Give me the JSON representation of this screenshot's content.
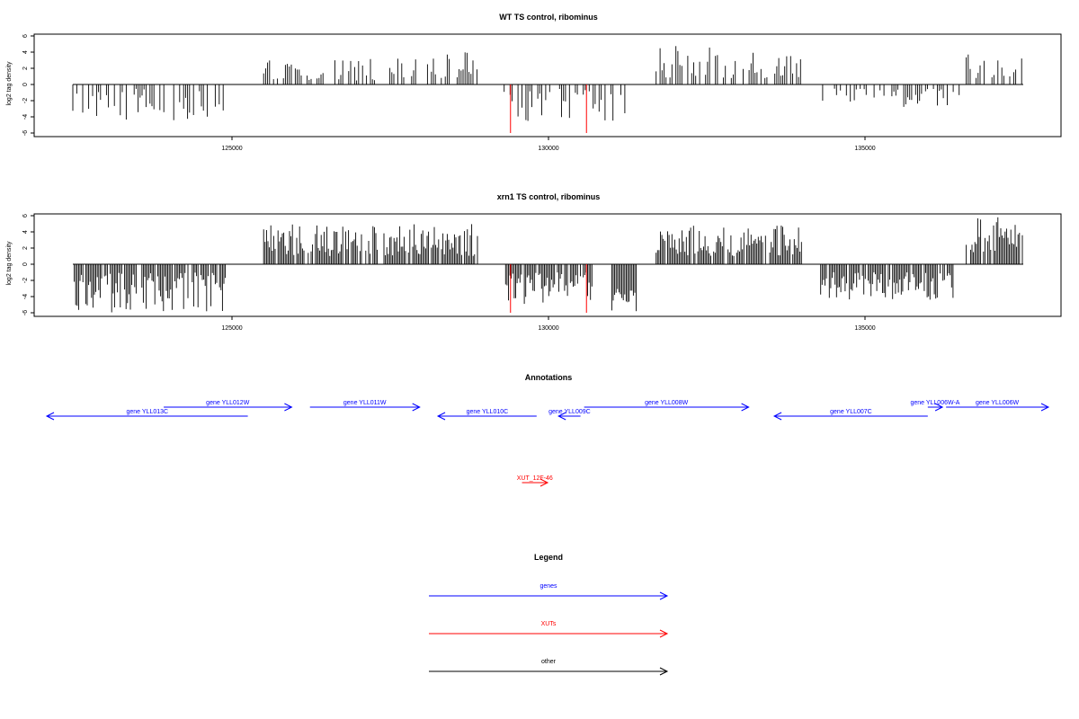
{
  "chart_data": [
    {
      "type": "bar",
      "title": "WT TS control, ribominus",
      "xlabel": "",
      "ylabel": "log2 tag density",
      "xlim": [
        121800,
        137800
      ],
      "ylim": [
        -6,
        6
      ],
      "xticks": [
        125000,
        130000,
        135000
      ],
      "yticks": [
        6,
        4,
        2,
        0,
        -2,
        -4,
        -6
      ],
      "segments": [
        {
          "from": 122000,
          "to": 124900,
          "min": -4.5,
          "max": -0.5,
          "sign": -1
        },
        {
          "from": 125500,
          "to": 127300,
          "min": 0.5,
          "max": 3.2,
          "sign": 1
        },
        {
          "from": 127400,
          "to": 128900,
          "min": 0.8,
          "max": 4.2,
          "sign": 1
        },
        {
          "from": 129300,
          "to": 131300,
          "min": -4.5,
          "max": -0.5,
          "sign": -1
        },
        {
          "from": 131700,
          "to": 134000,
          "min": 0.8,
          "max": 4.8,
          "sign": 1
        },
        {
          "from": 134300,
          "to": 136500,
          "min": -3.0,
          "max": -0.5,
          "sign": -1
        },
        {
          "from": 136600,
          "to": 137500,
          "min": 0.8,
          "max": 3.8,
          "sign": 1
        }
      ],
      "highlights": [
        {
          "x": 129400,
          "value": -6,
          "color": "#ff0000"
        },
        {
          "x": 130600,
          "value": -6,
          "color": "#ff0000"
        }
      ]
    },
    {
      "type": "bar",
      "title": "xrn1 TS control, ribominus",
      "xlabel": "",
      "ylabel": "log2 tag density",
      "xlim": [
        121800,
        137800
      ],
      "ylim": [
        -6,
        6
      ],
      "xticks": [
        125000,
        130000,
        135000
      ],
      "yticks": [
        6,
        4,
        2,
        0,
        -2,
        -4,
        -6
      ],
      "segments": [
        {
          "from": 122000,
          "to": 124900,
          "min": -6.0,
          "max": -1.0,
          "sign": -1
        },
        {
          "from": 125500,
          "to": 127300,
          "min": 1.0,
          "max": 5.0,
          "sign": 1
        },
        {
          "from": 127400,
          "to": 128900,
          "min": 1.0,
          "max": 5.0,
          "sign": 1
        },
        {
          "from": 129300,
          "to": 130700,
          "min": -5.0,
          "max": -1.0,
          "sign": -1
        },
        {
          "from": 131000,
          "to": 131400,
          "min": -6.0,
          "max": -3.0,
          "sign": -1
        },
        {
          "from": 131700,
          "to": 134000,
          "min": 1.0,
          "max": 4.8,
          "sign": 1
        },
        {
          "from": 134300,
          "to": 136400,
          "min": -4.5,
          "max": -1.0,
          "sign": -1
        },
        {
          "from": 136600,
          "to": 137500,
          "min": 1.5,
          "max": 5.8,
          "sign": 1
        }
      ],
      "highlights": [
        {
          "x": 129400,
          "value": -6,
          "color": "#ff0000"
        },
        {
          "x": 130600,
          "value": -6,
          "color": "#ff0000"
        }
      ]
    }
  ],
  "annotations": {
    "title": "Annotations",
    "genes": [
      {
        "label": "gene YLL013C",
        "start": 121800,
        "end": 127300,
        "strand": "-",
        "row": 1
      },
      {
        "label": "gene YLL012W",
        "start": 125000,
        "end": 128500,
        "strand": "+",
        "row": 0
      },
      {
        "label": "gene YLL011W",
        "start": 129000,
        "end": 132000,
        "strand": "+",
        "row": 0
      },
      {
        "label": "gene YLL010C",
        "start": 132500,
        "end": 135200,
        "strand": "-",
        "row": 1
      },
      {
        "label": "gene YLL009C",
        "start": 135800,
        "end": 136400,
        "strand": "-",
        "row": 1
      },
      {
        "label": "gene YLL008W",
        "start": 136500,
        "end": 141000,
        "strand": "+",
        "row": 0
      },
      {
        "label": "gene YLL007C",
        "start": 141700,
        "end": 145900,
        "strand": "-",
        "row": 1
      },
      {
        "label": "gene YLL006W-A",
        "start": 145900,
        "end": 146300,
        "strand": "+",
        "row": 0
      },
      {
        "label": "gene YLL006W",
        "start": 146400,
        "end": 149200,
        "strand": "+",
        "row": 0
      }
    ],
    "xuts": [
      {
        "label": "XUT_12F-46",
        "start": 134800,
        "end": 135500,
        "strand": "+"
      }
    ]
  },
  "legend": {
    "title": "Legend",
    "items": [
      {
        "label": "genes",
        "color": "#0000ff"
      },
      {
        "label": "XUTs",
        "color": "#ff0000"
      },
      {
        "label": "other",
        "color": "#000000"
      }
    ]
  }
}
